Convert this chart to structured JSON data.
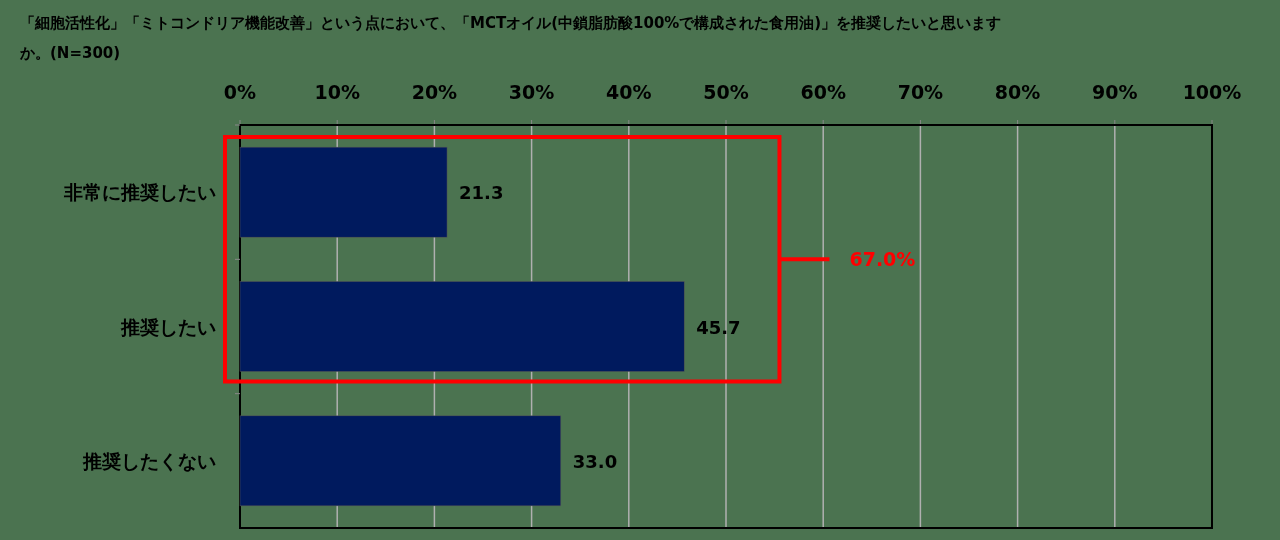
{
  "chart_data": {
    "type": "bar",
    "orientation": "horizontal",
    "title": "「細胞活性化」「ミトコンドリア機能改善」という点において、「MCTオイル(中鎖脂肪酸100%で構成された食用油)」を推奨したいと思いますか。(N=300)",
    "categories": [
      "非常に推奨したい",
      "推奨したい",
      "推奨したくない"
    ],
    "values": [
      21.3,
      45.7,
      33.0
    ],
    "color": "#001a5e",
    "xlim": [
      0,
      100
    ],
    "xticks": [
      {
        "value": 0,
        "label": "0%"
      },
      {
        "value": 10,
        "label": "10%"
      },
      {
        "value": 20,
        "label": "20%"
      },
      {
        "value": 30,
        "label": "30%"
      },
      {
        "value": 40,
        "label": "40%"
      },
      {
        "value": 50,
        "label": "50%"
      },
      {
        "value": 60,
        "label": "60%"
      },
      {
        "value": 70,
        "label": "70%"
      },
      {
        "value": 80,
        "label": "80%"
      },
      {
        "value": 90,
        "label": "90%"
      },
      {
        "value": 100,
        "label": "100%"
      }
    ],
    "grid": "x",
    "value_labels": [
      "21.3",
      "45.7",
      "33.0"
    ],
    "annotations": [
      "67.0%"
    ]
  }
}
